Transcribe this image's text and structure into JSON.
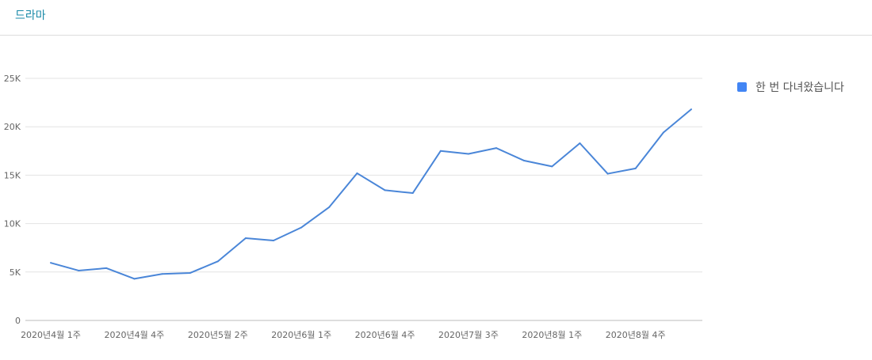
{
  "header": {
    "title": "드라마"
  },
  "chart_data": {
    "type": "line",
    "title": "",
    "xlabel": "",
    "ylabel": "",
    "ylim": [
      0,
      25000
    ],
    "y_ticks": [
      {
        "v": 0,
        "label": "0"
      },
      {
        "v": 5000,
        "label": "5K"
      },
      {
        "v": 10000,
        "label": "10K"
      },
      {
        "v": 15000,
        "label": "15K"
      },
      {
        "v": 20000,
        "label": "20K"
      },
      {
        "v": 25000,
        "label": "25K"
      }
    ],
    "x_tick_labels": [
      {
        "i": 0,
        "label": "2020년4월 1주"
      },
      {
        "i": 3,
        "label": "2020년4월 4주"
      },
      {
        "i": 6,
        "label": "2020년5월 2주"
      },
      {
        "i": 9,
        "label": "2020년6월 1주"
      },
      {
        "i": 12,
        "label": "2020년6월 4주"
      },
      {
        "i": 15,
        "label": "2020년7월 3주"
      },
      {
        "i": 18,
        "label": "2020년8월 1주"
      },
      {
        "i": 21,
        "label": "2020년8월 4주"
      }
    ],
    "grid": true,
    "legend_position": "right",
    "series": [
      {
        "name": "한 번 다녀왔습니다",
        "color": "#4a86d8",
        "values": [
          5950,
          5150,
          5400,
          4300,
          4800,
          4900,
          6100,
          8500,
          8250,
          9600,
          11700,
          15200,
          13450,
          13150,
          17500,
          17200,
          17800,
          16500,
          15900,
          18300,
          15150,
          15700,
          19400,
          21800
        ]
      }
    ]
  }
}
